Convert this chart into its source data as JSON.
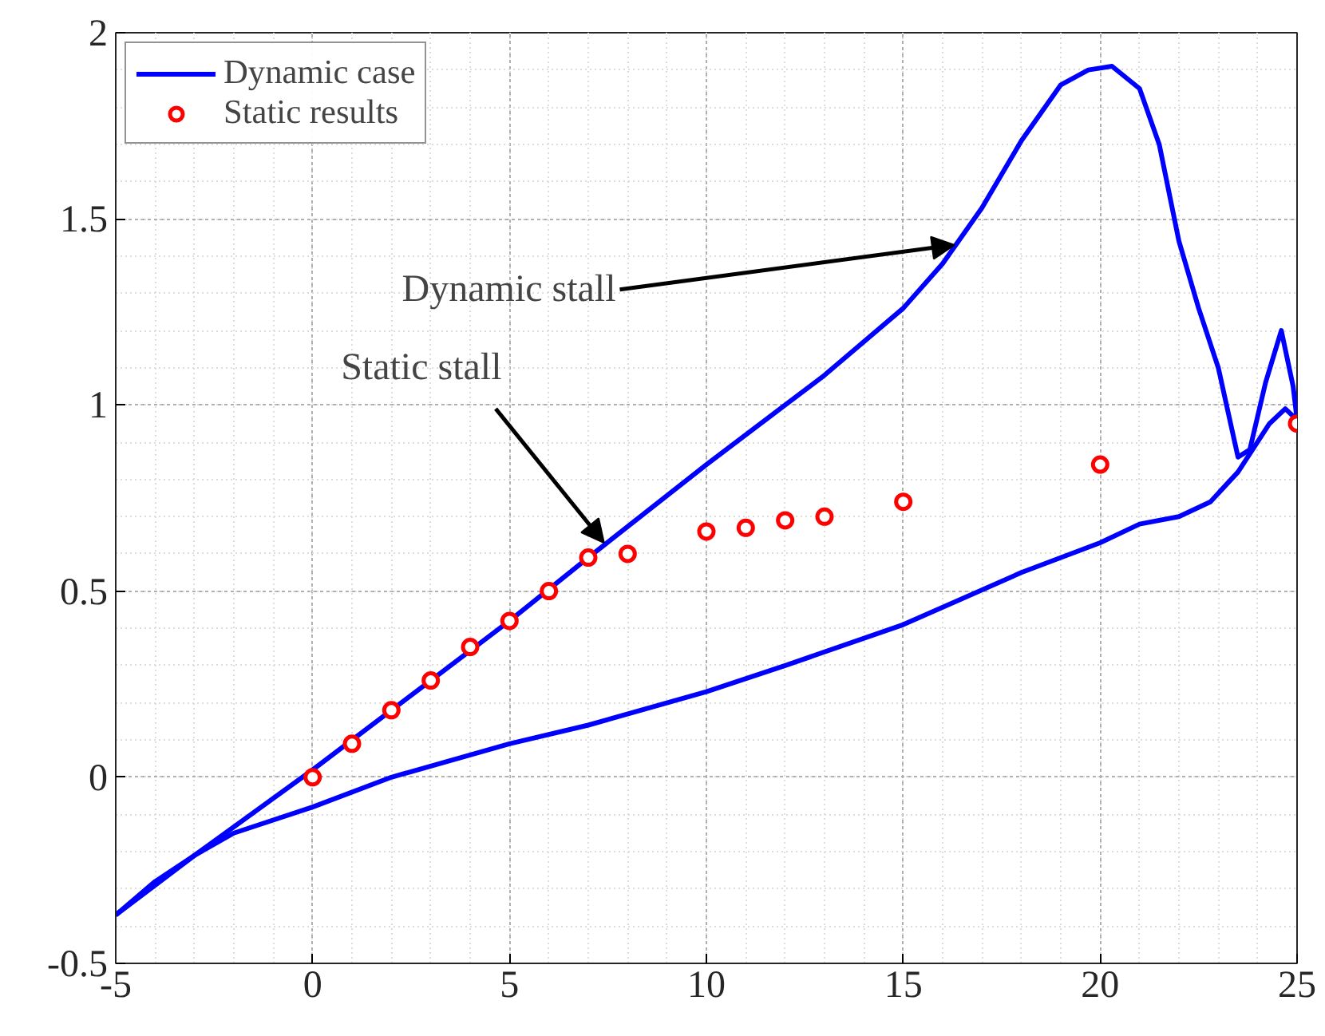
{
  "chart_data": {
    "type": "line",
    "xlim": [
      -5,
      25
    ],
    "ylim": [
      -0.5,
      2
    ],
    "xticks": [
      -5,
      0,
      5,
      10,
      15,
      20,
      25
    ],
    "yticks": [
      -0.5,
      0,
      0.5,
      1,
      1.5,
      2
    ],
    "grid": true,
    "legend": "top left",
    "series": [
      {
        "name": "Dynamic case",
        "color": "#0000ff",
        "x": [
          -5,
          -3,
          0,
          3,
          5,
          7,
          10,
          13,
          15,
          16,
          17,
          18,
          19,
          19.7,
          20.3,
          21,
          21.5,
          22,
          22.5,
          23,
          23.5,
          23.8,
          24.2,
          24.6,
          24.9,
          25
        ],
        "values": [
          -0.37,
          -0.21,
          0.02,
          0.26,
          0.42,
          0.59,
          0.84,
          1.08,
          1.26,
          1.38,
          1.53,
          1.71,
          1.86,
          1.9,
          1.91,
          1.85,
          1.7,
          1.44,
          1.26,
          1.1,
          0.86,
          0.88,
          1.06,
          1.2,
          1.05,
          0.96
        ],
        "line_style": "solid",
        "marker": "none"
      },
      {
        "color": "#0000ff",
        "x": [
          -5,
          -4,
          -3,
          -2,
          0,
          2,
          5,
          7,
          10,
          12,
          15,
          18,
          20,
          21,
          22,
          22.8,
          23.5,
          24.3,
          24.7,
          25
        ],
        "values": [
          -0.37,
          -0.28,
          -0.21,
          -0.15,
          -0.08,
          0,
          0.09,
          0.14,
          0.23,
          0.3,
          0.41,
          0.55,
          0.63,
          0.68,
          0.7,
          0.74,
          0.82,
          0.95,
          0.99,
          0.96
        ],
        "line_style": "solid",
        "marker": "none"
      },
      {
        "name": "Static results",
        "type": "scatter",
        "color": "#ff0000",
        "marker": "circle",
        "x": [
          0,
          1,
          2,
          3,
          4,
          5,
          6,
          7,
          8,
          10,
          11,
          12,
          13,
          15,
          20,
          25
        ],
        "values": [
          0,
          0.09,
          0.18,
          0.26,
          0.35,
          0.42,
          0.5,
          0.59,
          0.6,
          0.66,
          0.67,
          0.69,
          0.7,
          0.74,
          0.84,
          0.95
        ]
      }
    ],
    "annotations": [
      {
        "text": "Dynamic stall",
        "x": 16.3,
        "y": 1.43
      },
      {
        "text": "Static stall",
        "x": 7.4,
        "y": 0.63
      }
    ]
  }
}
